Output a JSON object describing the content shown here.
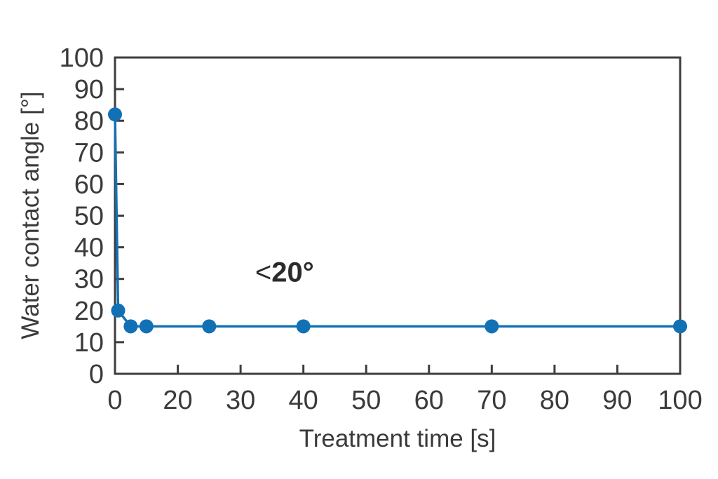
{
  "chart_data": {
    "type": "line",
    "series_name": "Water contact angle",
    "x": [
      0,
      1,
      5,
      10,
      25,
      40,
      70,
      100
    ],
    "y": [
      82,
      20,
      15,
      15,
      15,
      15,
      15,
      15
    ],
    "title": "",
    "xlabel": "Treatment time [s]",
    "ylabel": "Water contact angle [°]",
    "x_tick_labels": [
      "0",
      "20",
      "30",
      "40",
      "50",
      "60",
      "70",
      "80",
      "90",
      "100"
    ],
    "y_tick_labels": [
      "0",
      "10",
      "20",
      "30",
      "40",
      "50",
      "60",
      "70",
      "80",
      "90",
      "100"
    ],
    "ylim": [
      0,
      100
    ],
    "axis_note": "x ticks are evenly spaced although the first labeled interval spans 0-20 (the 10 label is skipped)",
    "grid": false,
    "legend": false,
    "marker": "circle",
    "annotation": {
      "prefix": "<",
      "value": "20°",
      "x": 37,
      "y": 32
    },
    "colors": {
      "series": "#1271b5",
      "axis": "#3d3d3d",
      "text": "#3a3a3a",
      "background": "#ffffff"
    }
  }
}
